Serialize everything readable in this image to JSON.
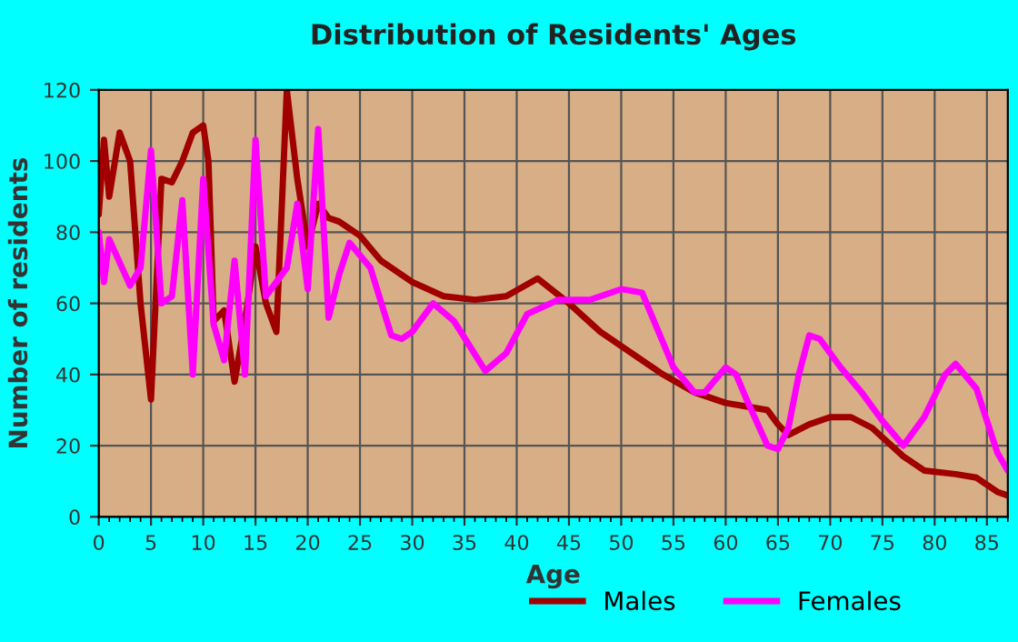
{
  "chart_data": {
    "type": "line",
    "title": "Distribution of Residents' Ages",
    "xlabel": "Age",
    "ylabel": "Number of residents",
    "xlim": [
      0,
      87
    ],
    "ylim": [
      0,
      120
    ],
    "xticks": [
      0,
      5,
      10,
      15,
      20,
      25,
      30,
      35,
      40,
      45,
      50,
      55,
      60,
      65,
      70,
      75,
      80,
      85
    ],
    "yticks": [
      0,
      20,
      40,
      60,
      80,
      100,
      120
    ],
    "grid": true,
    "legend": "bottom",
    "marker": "none",
    "line_style": "solid",
    "series": [
      {
        "name": "Males",
        "color": "#a00000",
        "x": [
          0,
          0.5,
          1,
          2,
          3,
          4,
          5,
          6,
          7,
          8,
          9,
          10,
          10.5,
          11,
          12,
          13,
          14,
          15,
          16,
          17,
          18,
          19,
          20,
          21,
          22,
          23,
          25,
          27,
          30,
          33,
          36,
          39,
          42,
          45,
          48,
          51,
          54,
          57,
          60,
          62,
          64,
          65,
          66,
          68,
          70,
          72,
          74,
          77,
          79,
          82,
          84,
          86,
          87
        ],
        "values": [
          85,
          106,
          90,
          108,
          100,
          60,
          33,
          95,
          94,
          100,
          108,
          110,
          100,
          55,
          58,
          38,
          55,
          76,
          60,
          52,
          120,
          95,
          76,
          88,
          84,
          83,
          79,
          72,
          66,
          62,
          61,
          62,
          67,
          60,
          52,
          46,
          40,
          35,
          32,
          31,
          30,
          26,
          23,
          26,
          28,
          28,
          25,
          17,
          13,
          12,
          11,
          7,
          6
        ]
      },
      {
        "name": "Females",
        "color": "#ff00ff",
        "x": [
          0,
          0.5,
          1,
          3,
          4,
          5,
          6,
          7,
          8,
          9,
          10,
          11,
          12,
          13,
          14,
          15,
          16,
          17,
          18,
          19,
          20,
          21,
          22,
          23,
          24,
          26,
          28,
          29,
          30,
          32,
          34,
          37,
          39,
          41,
          44,
          47,
          50,
          52,
          55,
          57,
          58,
          60,
          61,
          62,
          64,
          65,
          66,
          67,
          68,
          69,
          71,
          73,
          75,
          77,
          79,
          81,
          82,
          84,
          86,
          87
        ],
        "values": [
          80,
          66,
          78,
          65,
          70,
          103,
          60,
          62,
          89,
          40,
          95,
          54,
          44,
          72,
          40,
          106,
          62,
          66,
          70,
          88,
          64,
          109,
          56,
          68,
          77,
          70,
          51,
          50,
          52,
          60,
          55,
          41,
          46,
          57,
          61,
          61,
          64,
          63,
          42,
          35,
          35,
          42,
          40,
          33,
          20,
          19,
          25,
          40,
          51,
          50,
          42,
          35,
          27,
          20,
          28,
          40,
          43,
          36,
          18,
          13
        ]
      }
    ]
  }
}
